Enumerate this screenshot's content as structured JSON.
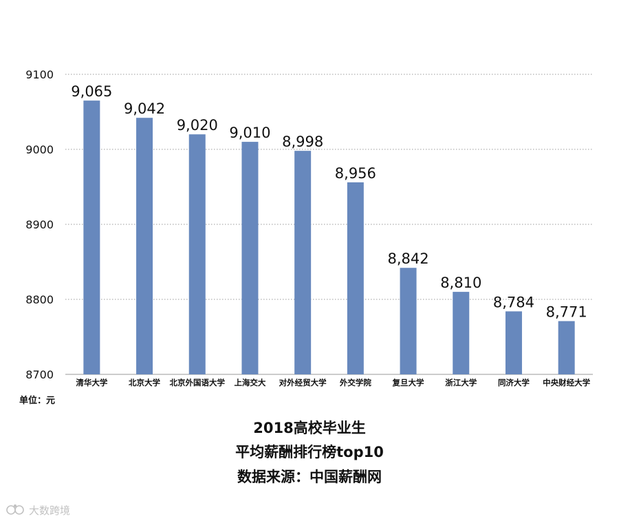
{
  "chart_data": {
    "type": "bar",
    "categories": [
      "清华大学",
      "北京大学",
      "北京外国语大学",
      "上海交大",
      "对外经贸大学",
      "外交学院",
      "复旦大学",
      "浙江大学",
      "同济大学",
      "中央财经大学"
    ],
    "values": [
      9065,
      9042,
      9020,
      9010,
      8998,
      8956,
      8842,
      8810,
      8784,
      8771
    ],
    "value_labels": [
      "9,065",
      "9,042",
      "9,020",
      "9,010",
      "8,998",
      "8,956",
      "8,842",
      "8,810",
      "8,784",
      "8,771"
    ],
    "ylim": [
      8700,
      9100
    ],
    "yticks": [
      8700,
      8800,
      8900,
      9000,
      9100
    ],
    "grid": "dotted horizontal",
    "bar_color": "#6788bd"
  },
  "unit_label": "单位：元",
  "caption": {
    "line1": "2018高校毕业生",
    "line2": "平均薪酬排行榜top10",
    "line3": "数据来源：中国薪酬网"
  },
  "watermark": {
    "text": "大数跨境",
    "icon": "watermark-logo-icon"
  }
}
